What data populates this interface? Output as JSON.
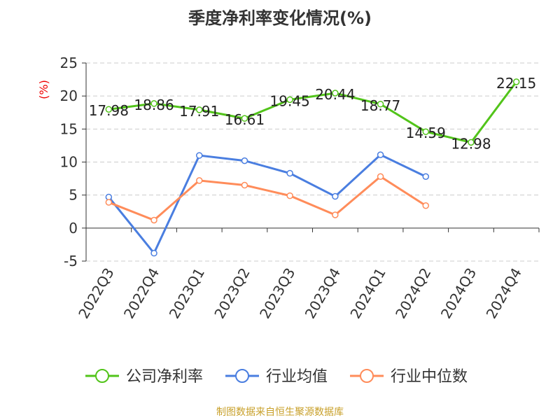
{
  "chart_data": {
    "type": "line",
    "title": "季度净利率变化情况(%)",
    "ylabel": "(%)",
    "xlabel": "",
    "ylim": [
      -5,
      25
    ],
    "yticks": [
      -5,
      0,
      5,
      10,
      15,
      20,
      25
    ],
    "grid": true,
    "legend_position": "bottom",
    "categories": [
      "2022Q3",
      "2022Q4",
      "2023Q1",
      "2023Q2",
      "2023Q3",
      "2023Q4",
      "2024Q1",
      "2024Q2",
      "2024Q3",
      "2024Q4"
    ],
    "series": [
      {
        "name": "公司净利率",
        "color": "#52c41a",
        "show_labels": true,
        "values": [
          17.98,
          18.86,
          17.91,
          16.61,
          19.45,
          20.44,
          18.77,
          14.59,
          12.98,
          22.15
        ]
      },
      {
        "name": "行业均值",
        "color": "#4a7ee0",
        "show_labels": false,
        "values": [
          4.7,
          -3.8,
          11.0,
          10.2,
          8.3,
          4.8,
          11.1,
          7.8,
          null,
          null
        ]
      },
      {
        "name": "行业中位数",
        "color": "#ff8c5a",
        "show_labels": false,
        "values": [
          3.9,
          1.2,
          7.2,
          6.5,
          4.9,
          2.0,
          7.8,
          3.4,
          null,
          null
        ]
      }
    ]
  },
  "footer": "制图数据来自恒生聚源数据库"
}
